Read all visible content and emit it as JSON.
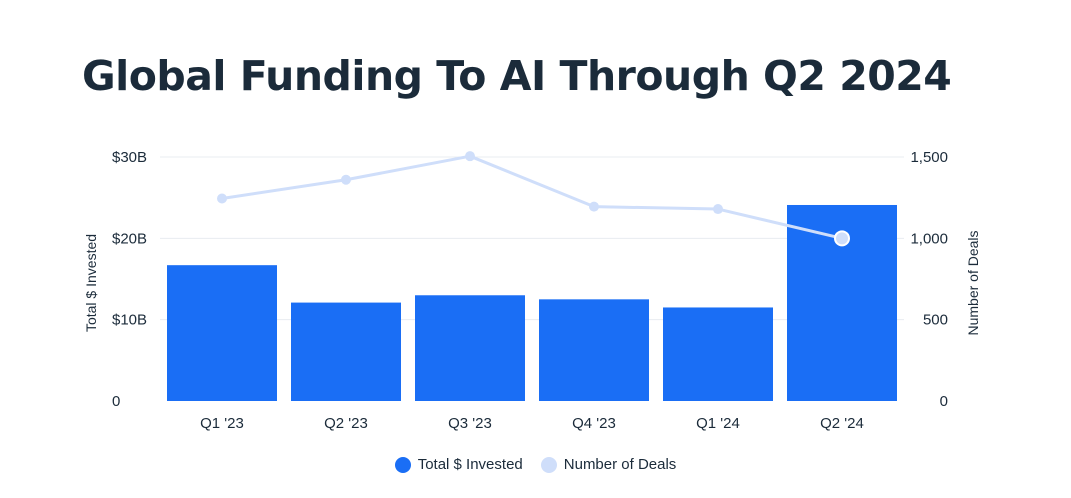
{
  "chart_data": {
    "type": "bar",
    "title": "Global Funding To AI Through Q2 2024",
    "categories": [
      "Q1 '23",
      "Q2 '23",
      "Q3 '23",
      "Q4 '23",
      "Q1 '24",
      "Q2 '24"
    ],
    "series": [
      {
        "name": "Total $ Invested",
        "type": "bar",
        "axis": "left",
        "values": [
          16.7,
          12.1,
          13.0,
          12.5,
          11.5,
          24.1
        ]
      },
      {
        "name": "Number of Deals",
        "type": "line",
        "axis": "right",
        "values": [
          1245,
          1360,
          1505,
          1195,
          1180,
          1000
        ]
      }
    ],
    "ylabel": "Total $ Invested",
    "ylim": [
      0,
      30
    ],
    "y_ticks": [
      "0",
      "$10B",
      "$20B",
      "$30B"
    ],
    "y2label": "Number of Deals",
    "y2lim": [
      0,
      1500
    ],
    "y2_ticks": [
      "0",
      "500",
      "1,000",
      "1,500"
    ],
    "grid": true,
    "legend_position": "bottom-center",
    "colors": {
      "bars": "#1a6ef5",
      "line": "#cfdefa",
      "title": "#1b2b3a",
      "grid": "#e8ecf1"
    }
  }
}
